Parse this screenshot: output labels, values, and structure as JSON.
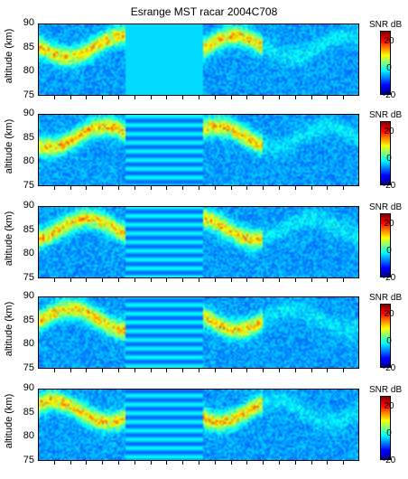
{
  "title": "Esrange MST racar 2004C708",
  "ylabel": "altitude (km)",
  "colorbar_label": "SNR dB",
  "panels": [
    {
      "yticks": [
        "90",
        "85",
        "80",
        "75"
      ],
      "cbticks": [
        "20",
        "0",
        "-20"
      ]
    },
    {
      "yticks": [
        "90",
        "85",
        "80",
        "75"
      ],
      "cbticks": [
        "20",
        "0",
        "-20"
      ]
    },
    {
      "yticks": [
        "90",
        "85",
        "80",
        "75"
      ],
      "cbticks": [
        "20",
        "0",
        "-20"
      ]
    },
    {
      "yticks": [
        "90",
        "85",
        "80",
        "75"
      ],
      "cbticks": [
        "20",
        "0",
        "-20"
      ]
    },
    {
      "yticks": [
        "90",
        "85",
        "80",
        "75"
      ],
      "cbticks": [
        "20",
        "0",
        "-20"
      ]
    }
  ],
  "chart_data": {
    "type": "heatmap",
    "title": "Esrange MST racar 2004C708",
    "ylabel": "altitude (km)",
    "ylim": [
      75,
      90
    ],
    "colorbar": {
      "label": "SNR dB",
      "range": [
        -20,
        30
      ],
      "ticks": [
        -20,
        0,
        20
      ]
    },
    "panel_count": 5
  },
  "colors": {
    "low": "#0000ff",
    "mid": "#00ffff",
    "high": "#ff0000"
  }
}
